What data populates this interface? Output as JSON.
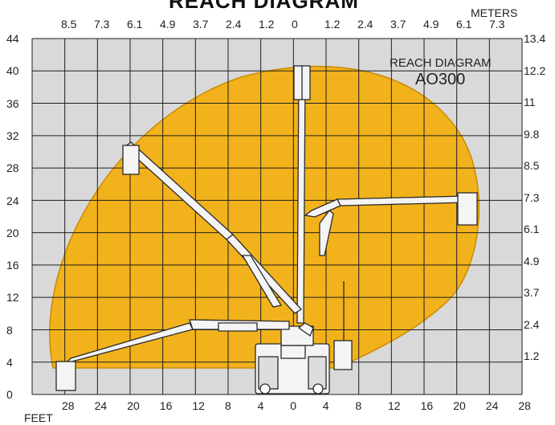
{
  "header": {
    "title_partial": "REACH DIAGRAM"
  },
  "legend": {
    "title": "REACH DIAGRAM",
    "model": "AO300"
  },
  "units": {
    "top_right": "METERS",
    "bottom_left": "FEET"
  },
  "axes": {
    "top_meters": [
      "8.5",
      "7.3",
      "6.1",
      "4.9",
      "3.7",
      "2.4",
      "1.2",
      "0",
      "1.2",
      "2.4",
      "3.7",
      "4.9",
      "6.1",
      "7.3"
    ],
    "bottom_feet": [
      "28",
      "24",
      "20",
      "16",
      "12",
      "8",
      "4",
      "0",
      "4",
      "8",
      "12",
      "16",
      "20",
      "24",
      "28"
    ],
    "left_feet": [
      "44",
      "40",
      "36",
      "32",
      "28",
      "24",
      "20",
      "16",
      "12",
      "8",
      "4",
      "0"
    ],
    "right_meters": [
      "13.4",
      "12.2",
      "11",
      "9.8",
      "8.5",
      "7.3",
      "6.1",
      "4.9",
      "3.7",
      "2.4",
      "1.2"
    ]
  },
  "colors": {
    "envelope": "#f2b21c",
    "envelope_edge": "#c98b00",
    "grid_bg": "#d9d9d9",
    "grid_line": "#1e1e1e",
    "machine": "#f4f4f4",
    "machine_edge": "#2a2a2a"
  },
  "grid": {
    "x_range_ft": [
      -30,
      30
    ],
    "y_range_ft": [
      0,
      44
    ],
    "step_ft": 4
  }
}
